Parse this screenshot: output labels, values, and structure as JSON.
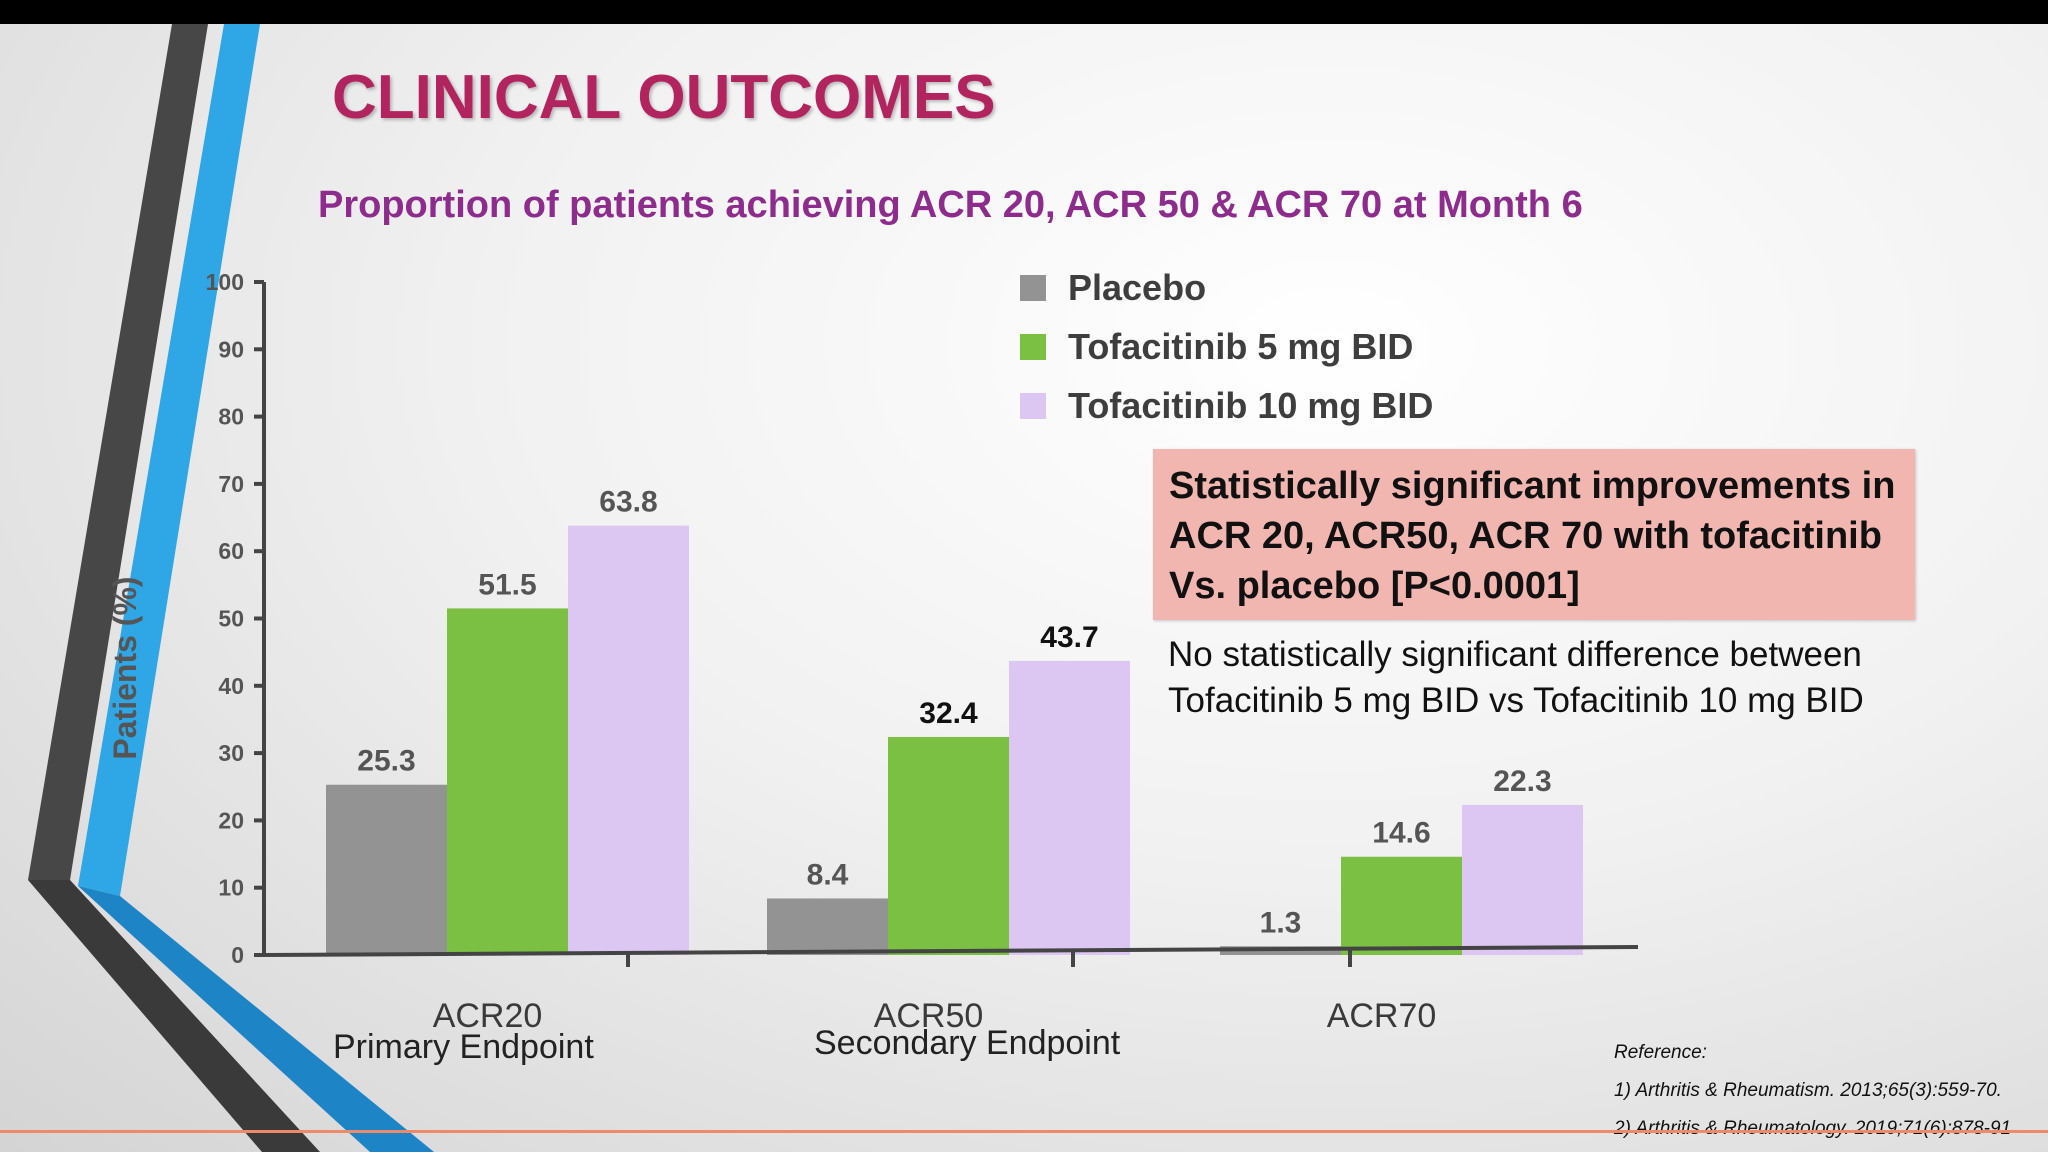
{
  "slide": {
    "title": "CLINICAL OUTCOMES",
    "subtitle": "Proportion of patients achieving ACR 20, ACR 50 & ACR 70 at Month 6",
    "callout": "Statistically significant improvements in ACR 20, ACR50, ACR 70 with tofacitinib Vs. placebo [P<0.0001]",
    "note": "No statistically significant difference between Tofacitinib 5 mg BID vs Tofacitinib 10 mg BID",
    "endpoints": {
      "primary": "Primary Endpoint",
      "secondary": "Secondary  Endpoint"
    },
    "references": {
      "heading": "Reference:",
      "items": [
        "1) Arthritis & Rheumatism. 2013;65(3):559-70.",
        "2) Arthritis & Rheumatology. 2019;71(6):878-91"
      ]
    },
    "colors": {
      "title": "#b2245e",
      "subtitle": "#8d2c8c",
      "callout_bg": "#f2b6b1",
      "accent_blue": "#2fa6e6",
      "dark_stripe": "#4a4a4a",
      "bottom_line": "#ee8a6a"
    }
  },
  "chart_data": {
    "type": "bar",
    "title": "",
    "xlabel": "",
    "ylabel": "Patients (%)",
    "ylim": [
      0,
      100
    ],
    "yticks": [
      0,
      10,
      20,
      30,
      40,
      50,
      60,
      70,
      80,
      90,
      100
    ],
    "categories": [
      "ACR20",
      "ACR50",
      "ACR70"
    ],
    "series": [
      {
        "name": "Placebo",
        "color": "#939393",
        "values": [
          25.3,
          8.4,
          1.3
        ]
      },
      {
        "name": "Tofacitinib 5 mg BID",
        "color": "#7bc043",
        "values": [
          51.5,
          32.4,
          14.6
        ]
      },
      {
        "name": "Tofacitinib 10 mg BID",
        "color": "#dcc6f2",
        "values": [
          63.8,
          43.7,
          22.3
        ]
      }
    ],
    "legend_position": "top-right",
    "grid": false
  }
}
